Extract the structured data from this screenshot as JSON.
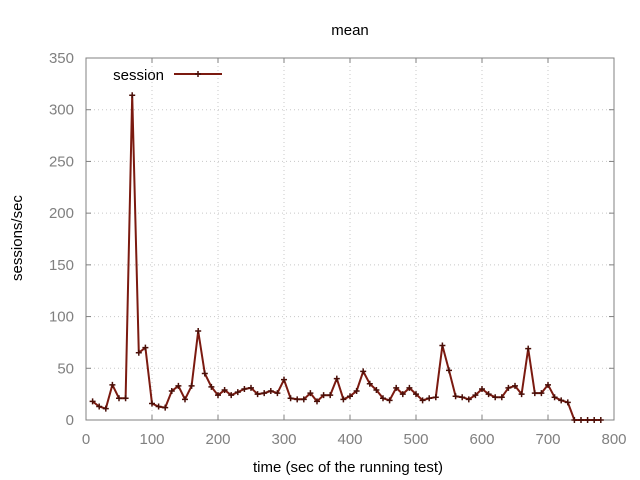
{
  "chart_data": {
    "type": "line",
    "title": "mean",
    "xlabel": "time (sec of the running test)",
    "ylabel": "sessions/sec",
    "xlim": [
      0,
      800
    ],
    "ylim": [
      0,
      350
    ],
    "xticks": [
      0,
      100,
      200,
      300,
      400,
      500,
      600,
      700,
      800
    ],
    "yticks": [
      0,
      50,
      100,
      150,
      200,
      250,
      300,
      350
    ],
    "grid": true,
    "legend_position": "top-left",
    "series": [
      {
        "name": "session",
        "color": "#7b1a10",
        "marker": "plus",
        "points": [
          [
            10,
            18
          ],
          [
            20,
            13
          ],
          [
            30,
            11
          ],
          [
            40,
            34
          ],
          [
            50,
            21
          ],
          [
            60,
            21
          ],
          [
            70,
            314
          ],
          [
            80,
            65
          ],
          [
            90,
            70
          ],
          [
            100,
            16
          ],
          [
            110,
            13
          ],
          [
            120,
            12
          ],
          [
            130,
            28
          ],
          [
            140,
            33
          ],
          [
            150,
            20
          ],
          [
            160,
            33
          ],
          [
            170,
            86
          ],
          [
            180,
            45
          ],
          [
            190,
            32
          ],
          [
            200,
            24
          ],
          [
            210,
            29
          ],
          [
            220,
            24
          ],
          [
            230,
            27
          ],
          [
            240,
            30
          ],
          [
            250,
            31
          ],
          [
            260,
            25
          ],
          [
            270,
            26
          ],
          [
            280,
            28
          ],
          [
            290,
            26
          ],
          [
            300,
            39
          ],
          [
            310,
            21
          ],
          [
            320,
            20
          ],
          [
            330,
            20
          ],
          [
            340,
            26
          ],
          [
            350,
            18
          ],
          [
            360,
            24
          ],
          [
            370,
            24
          ],
          [
            380,
            40
          ],
          [
            390,
            20
          ],
          [
            400,
            23
          ],
          [
            410,
            28
          ],
          [
            420,
            47
          ],
          [
            430,
            35
          ],
          [
            440,
            29
          ],
          [
            450,
            21
          ],
          [
            460,
            19
          ],
          [
            470,
            31
          ],
          [
            480,
            25
          ],
          [
            490,
            31
          ],
          [
            500,
            25
          ],
          [
            510,
            19
          ],
          [
            520,
            21
          ],
          [
            530,
            22
          ],
          [
            540,
            72
          ],
          [
            550,
            48
          ],
          [
            560,
            23
          ],
          [
            570,
            22
          ],
          [
            580,
            20
          ],
          [
            590,
            24
          ],
          [
            600,
            30
          ],
          [
            610,
            25
          ],
          [
            620,
            22
          ],
          [
            630,
            22
          ],
          [
            640,
            31
          ],
          [
            650,
            33
          ],
          [
            660,
            25
          ],
          [
            670,
            69
          ],
          [
            680,
            26
          ],
          [
            690,
            26
          ],
          [
            700,
            34
          ],
          [
            710,
            22
          ],
          [
            720,
            19
          ],
          [
            730,
            17
          ],
          [
            740,
            0
          ],
          [
            750,
            0
          ],
          [
            760,
            0
          ],
          [
            770,
            0
          ],
          [
            780,
            0
          ]
        ]
      }
    ]
  }
}
